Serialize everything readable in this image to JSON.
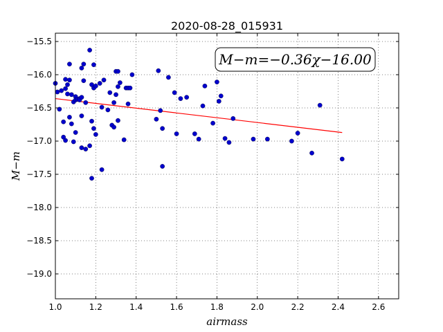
{
  "chart_data": {
    "type": "scatter",
    "title": "2020-08-28_015931",
    "xlabel": "airmass",
    "ylabel": "M−m",
    "xlim": [
      1.0,
      2.7
    ],
    "ylim": [
      -19.375,
      -15.375
    ],
    "ylim_note_inverted": true,
    "xticks": [
      1.0,
      1.2,
      1.4,
      1.6,
      1.8,
      2.0,
      2.2,
      2.4,
      2.6
    ],
    "xtick_labels": [
      "1.0",
      "1.2",
      "1.4",
      "1.6",
      "1.8",
      "2.0",
      "2.2",
      "2.4",
      "2.6"
    ],
    "yticks": [
      -15.5,
      -16.0,
      -16.5,
      -17.0,
      -17.5,
      -18.0,
      -18.5,
      -19.0
    ],
    "ytick_labels": [
      "−15.5",
      "−16.0",
      "−16.5",
      "−17.0",
      "−17.5",
      "−18.0",
      "−18.5",
      "−19.0"
    ],
    "grid": true,
    "annotation": "M−m=−0.36χ−16.00",
    "fit": {
      "slope": -0.36,
      "intercept": -16.0,
      "x_range": [
        1.0,
        2.42
      ],
      "color": "#ff0000"
    },
    "point_color": "#0000cc",
    "points": [
      [
        1.0,
        -16.13
      ],
      [
        1.01,
        -16.26
      ],
      [
        1.02,
        -16.52
      ],
      [
        1.03,
        -16.24
      ],
      [
        1.04,
        -16.71
      ],
      [
        1.04,
        -16.94
      ],
      [
        1.05,
        -16.21
      ],
      [
        1.05,
        -16.99
      ],
      [
        1.05,
        -16.07
      ],
      [
        1.06,
        -16.29
      ],
      [
        1.06,
        -16.15
      ],
      [
        1.07,
        -16.08
      ],
      [
        1.07,
        -15.84
      ],
      [
        1.07,
        -16.64
      ],
      [
        1.08,
        -16.74
      ],
      [
        1.08,
        -16.3
      ],
      [
        1.09,
        -16.41
      ],
      [
        1.09,
        -17.01
      ],
      [
        1.1,
        -16.33
      ],
      [
        1.1,
        -16.87
      ],
      [
        1.1,
        -16.38
      ],
      [
        1.11,
        -16.37
      ],
      [
        1.12,
        -16.36
      ],
      [
        1.12,
        -16.38
      ],
      [
        1.13,
        -16.34
      ],
      [
        1.13,
        -16.62
      ],
      [
        1.13,
        -17.1
      ],
      [
        1.13,
        -15.9
      ],
      [
        1.14,
        -15.84
      ],
      [
        1.14,
        -16.09
      ],
      [
        1.15,
        -16.42
      ],
      [
        1.15,
        -17.12
      ],
      [
        1.17,
        -15.63
      ],
      [
        1.17,
        -17.07
      ],
      [
        1.18,
        -16.7
      ],
      [
        1.18,
        -17.56
      ],
      [
        1.18,
        -16.15
      ],
      [
        1.19,
        -15.85
      ],
      [
        1.19,
        -16.2
      ],
      [
        1.19,
        -16.81
      ],
      [
        1.2,
        -16.17
      ],
      [
        1.2,
        -16.9
      ],
      [
        1.22,
        -16.13
      ],
      [
        1.23,
        -16.49
      ],
      [
        1.23,
        -17.43
      ],
      [
        1.24,
        -16.08
      ],
      [
        1.26,
        -16.53
      ],
      [
        1.27,
        -16.27
      ],
      [
        1.28,
        -16.76
      ],
      [
        1.29,
        -16.42
      ],
      [
        1.29,
        -16.79
      ],
      [
        1.3,
        -15.95
      ],
      [
        1.3,
        -16.3
      ],
      [
        1.31,
        -16.69
      ],
      [
        1.31,
        -16.18
      ],
      [
        1.31,
        -15.95
      ],
      [
        1.32,
        -16.12
      ],
      [
        1.34,
        -16.98
      ],
      [
        1.35,
        -16.2
      ],
      [
        1.36,
        -16.2
      ],
      [
        1.36,
        -16.44
      ],
      [
        1.37,
        -16.2
      ],
      [
        1.38,
        -16.0
      ],
      [
        1.5,
        -16.67
      ],
      [
        1.51,
        -15.94
      ],
      [
        1.52,
        -16.54
      ],
      [
        1.53,
        -16.81
      ],
      [
        1.53,
        -17.38
      ],
      [
        1.56,
        -16.04
      ],
      [
        1.59,
        -16.27
      ],
      [
        1.6,
        -16.89
      ],
      [
        1.62,
        -16.36
      ],
      [
        1.65,
        -16.34
      ],
      [
        1.69,
        -16.89
      ],
      [
        1.71,
        -16.97
      ],
      [
        1.73,
        -16.47
      ],
      [
        1.74,
        -16.17
      ],
      [
        1.78,
        -16.73
      ],
      [
        1.8,
        -16.11
      ],
      [
        1.81,
        -16.4
      ],
      [
        1.82,
        -16.32
      ],
      [
        1.84,
        -16.96
      ],
      [
        1.86,
        -17.02
      ],
      [
        1.88,
        -16.66
      ],
      [
        1.98,
        -16.97
      ],
      [
        2.05,
        -16.97
      ],
      [
        2.17,
        -17.0
      ],
      [
        2.2,
        -16.88
      ],
      [
        2.27,
        -17.18
      ],
      [
        2.31,
        -16.46
      ],
      [
        2.42,
        -17.27
      ]
    ]
  }
}
